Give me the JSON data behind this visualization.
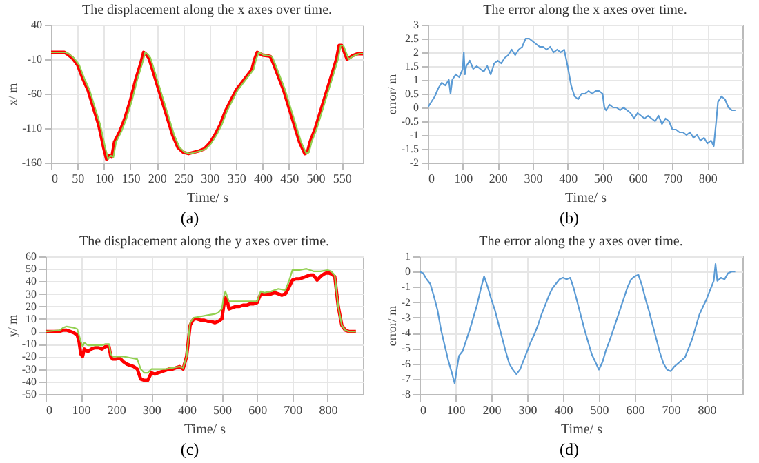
{
  "chart_data": [
    {
      "type": "line",
      "title": "The displacement along the x axes over time.",
      "xlabel": "Time/ s",
      "ylabel": "x/ m",
      "annotations": [
        "(a)"
      ],
      "xlim": [
        0,
        590
      ],
      "xticks": [
        0,
        50,
        100,
        150,
        200,
        250,
        300,
        350,
        400,
        450,
        500,
        550
      ],
      "ylim": [
        -160,
        40
      ],
      "yticks": [
        -160,
        -110,
        -60,
        -10,
        40
      ],
      "grid": true,
      "series": [
        {
          "color": "#92d050",
          "x": [
            0,
            10,
            28,
            33,
            43,
            53,
            63,
            73,
            83,
            93,
            103,
            108,
            113,
            118,
            123,
            133,
            143,
            153,
            163,
            173,
            178,
            183,
            188,
            193,
            203,
            213,
            223,
            233,
            243,
            253,
            263,
            273,
            283,
            293,
            303,
            313,
            323,
            333,
            343,
            353,
            363,
            373,
            383,
            388,
            393,
            398,
            403,
            413,
            418,
            423,
            433,
            443,
            453,
            463,
            473,
            483,
            488,
            493,
            503,
            513,
            523,
            533,
            543,
            548,
            553,
            558,
            563,
            573,
            583,
            590
          ],
          "values": [
            0,
            0,
            0,
            -2,
            -8,
            -18,
            -38,
            -55,
            -80,
            -105,
            -140,
            -155,
            -150,
            -152,
            -130,
            -115,
            -95,
            -70,
            -40,
            -15,
            0,
            -3,
            -8,
            -20,
            -45,
            -70,
            -95,
            -120,
            -138,
            -145,
            -147,
            -145,
            -143,
            -140,
            -132,
            -120,
            -105,
            -85,
            -70,
            -55,
            -45,
            -35,
            -25,
            -10,
            0,
            -2,
            -4,
            -5,
            -6,
            -15,
            -35,
            -55,
            -80,
            -105,
            -130,
            -147,
            -145,
            -130,
            -110,
            -85,
            -60,
            -35,
            -10,
            10,
            10,
            0,
            -10,
            -5,
            -2,
            -2
          ]
        },
        {
          "color": "#ff0000",
          "x": [
            0,
            10,
            25,
            30,
            40,
            50,
            60,
            70,
            80,
            90,
            100,
            105,
            110,
            115,
            120,
            130,
            140,
            150,
            160,
            170,
            175,
            180,
            185,
            190,
            200,
            210,
            220,
            230,
            240,
            250,
            260,
            270,
            280,
            290,
            300,
            310,
            320,
            330,
            340,
            350,
            360,
            370,
            380,
            385,
            390,
            395,
            400,
            410,
            415,
            420,
            430,
            440,
            450,
            460,
            470,
            480,
            485,
            490,
            500,
            510,
            520,
            530,
            540,
            545,
            550,
            555,
            560,
            570,
            580,
            590
          ],
          "values": [
            0,
            0,
            0,
            -2,
            -8,
            -18,
            -38,
            -55,
            -80,
            -105,
            -140,
            -155,
            -150,
            -152,
            -130,
            -115,
            -95,
            -70,
            -40,
            -15,
            0,
            -3,
            -8,
            -20,
            -45,
            -70,
            -95,
            -120,
            -138,
            -145,
            -147,
            -145,
            -143,
            -140,
            -132,
            -120,
            -105,
            -85,
            -70,
            -55,
            -45,
            -35,
            -25,
            -10,
            0,
            -2,
            -4,
            -5,
            -6,
            -15,
            -35,
            -55,
            -80,
            -105,
            -130,
            -147,
            -145,
            -130,
            -110,
            -85,
            -60,
            -35,
            -10,
            10,
            10,
            0,
            -10,
            -5,
            -2,
            -2
          ]
        }
      ]
    },
    {
      "type": "line",
      "title": "The error along the x axes over time.",
      "xlabel": "Time/ s",
      "ylabel": "error/ m",
      "annotations": [
        "(b)"
      ],
      "xlim": [
        0,
        900
      ],
      "xticks": [
        0,
        100,
        200,
        300,
        400,
        500,
        600,
        700,
        800
      ],
      "ylim": [
        -2,
        3
      ],
      "yticks": [
        -2,
        -1.5,
        -1,
        -0.5,
        0,
        0.5,
        1,
        1.5,
        2,
        2.5,
        3
      ],
      "grid": true,
      "series": [
        {
          "color": "#5b9bd5",
          "x": [
            0,
            10,
            20,
            30,
            40,
            50,
            60,
            65,
            70,
            80,
            90,
            100,
            103,
            106,
            110,
            120,
            130,
            140,
            150,
            160,
            170,
            180,
            190,
            200,
            210,
            220,
            230,
            240,
            250,
            260,
            270,
            280,
            290,
            300,
            310,
            320,
            330,
            340,
            350,
            360,
            370,
            380,
            390,
            400,
            410,
            420,
            430,
            440,
            450,
            460,
            470,
            480,
            490,
            500,
            505,
            510,
            520,
            530,
            540,
            550,
            560,
            570,
            580,
            590,
            600,
            610,
            620,
            630,
            640,
            650,
            660,
            670,
            680,
            690,
            700,
            710,
            720,
            730,
            740,
            750,
            760,
            770,
            780,
            790,
            800,
            810,
            818,
            825,
            830,
            840,
            850,
            860,
            870,
            880
          ],
          "values": [
            0,
            0.2,
            0.4,
            0.7,
            0.9,
            0.8,
            1.0,
            0.5,
            1.0,
            1.2,
            1.1,
            1.4,
            2.0,
            1.2,
            1.5,
            1.7,
            1.4,
            1.5,
            1.4,
            1.3,
            1.5,
            1.2,
            1.6,
            1.7,
            1.6,
            1.8,
            1.9,
            2.1,
            1.9,
            2.1,
            2.2,
            2.5,
            2.5,
            2.4,
            2.3,
            2.2,
            2.2,
            2.1,
            2.2,
            2.0,
            2.1,
            2.0,
            2.1,
            1.5,
            0.8,
            0.4,
            0.3,
            0.5,
            0.5,
            0.6,
            0.5,
            0.6,
            0.6,
            0.5,
            0.0,
            -0.1,
            0.1,
            0.0,
            0.0,
            -0.1,
            0.0,
            -0.1,
            -0.2,
            -0.4,
            -0.2,
            -0.3,
            -0.4,
            -0.3,
            -0.4,
            -0.5,
            -0.3,
            -0.6,
            -0.4,
            -0.5,
            -0.8,
            -0.8,
            -0.9,
            -0.9,
            -1.0,
            -0.9,
            -1.1,
            -1.0,
            -1.2,
            -1.1,
            -1.3,
            -1.2,
            -1.4,
            -0.5,
            0.2,
            0.4,
            0.3,
            0.0,
            -0.1,
            -0.1
          ]
        }
      ]
    },
    {
      "type": "line",
      "title": "The displacement along the y axes over time.",
      "xlabel": "Time/ s",
      "ylabel": "y/ m",
      "annotations": [
        "(c)"
      ],
      "xlim": [
        0,
        900
      ],
      "xticks": [
        0,
        100,
        200,
        300,
        400,
        500,
        600,
        700,
        800
      ],
      "ylim": [
        -50,
        60
      ],
      "yticks": [
        -50,
        -40,
        -30,
        -20,
        -10,
        0,
        10,
        20,
        30,
        40,
        50,
        60
      ],
      "grid": true,
      "series": [
        {
          "color": "#92d050",
          "x": [
            0,
            40,
            50,
            60,
            80,
            90,
            95,
            100,
            105,
            110,
            120,
            140,
            160,
            170,
            180,
            185,
            190,
            200,
            220,
            240,
            260,
            270,
            280,
            290,
            300,
            320,
            340,
            360,
            380,
            390,
            400,
            410,
            420,
            440,
            460,
            480,
            490,
            500,
            505,
            510,
            515,
            520,
            540,
            560,
            580,
            600,
            610,
            620,
            640,
            660,
            680,
            690,
            700,
            720,
            740,
            760,
            780,
            800,
            810,
            820,
            830,
            840,
            850,
            860,
            880
          ],
          "values": [
            0,
            1,
            3,
            4,
            3,
            2,
            -3,
            -8,
            -12,
            -9,
            -11,
            -11,
            -11,
            -10,
            -10,
            -18,
            -20,
            -20,
            -20,
            -21,
            -22,
            -30,
            -33,
            -33,
            -30,
            -30,
            -30,
            -29,
            -28,
            -29,
            -20,
            7,
            11,
            12,
            13,
            14,
            15,
            18,
            27,
            32,
            28,
            24,
            24,
            24,
            24,
            24,
            32,
            31,
            32,
            34,
            33,
            40,
            49,
            49,
            50,
            48,
            48,
            49,
            48,
            45,
            20,
            5,
            1,
            0,
            0
          ]
        },
        {
          "color": "#ff0000",
          "x": [
            0,
            40,
            50,
            60,
            70,
            80,
            90,
            95,
            100,
            105,
            110,
            120,
            130,
            140,
            150,
            160,
            170,
            180,
            185,
            190,
            200,
            210,
            220,
            230,
            240,
            250,
            260,
            270,
            280,
            290,
            300,
            310,
            320,
            330,
            340,
            350,
            360,
            370,
            380,
            390,
            400,
            410,
            420,
            430,
            440,
            450,
            460,
            470,
            480,
            490,
            500,
            505,
            510,
            515,
            520,
            530,
            540,
            550,
            560,
            570,
            580,
            590,
            600,
            610,
            620,
            630,
            640,
            650,
            660,
            670,
            680,
            690,
            700,
            710,
            720,
            730,
            740,
            750,
            760,
            770,
            780,
            790,
            800,
            810,
            820,
            830,
            840,
            850,
            860,
            880
          ],
          "values": [
            0,
            0,
            1,
            1,
            0,
            -1,
            -3,
            -8,
            -18,
            -20,
            -14,
            -16,
            -14,
            -13,
            -13,
            -14,
            -12,
            -12,
            -20,
            -22,
            -22,
            -21,
            -24,
            -26,
            -27,
            -28,
            -30,
            -38,
            -39,
            -39,
            -33,
            -34,
            -33,
            -32,
            -31,
            -30,
            -30,
            -29,
            -28,
            -30,
            -20,
            5,
            10,
            10,
            9,
            9,
            8,
            8,
            7,
            8,
            10,
            20,
            27,
            25,
            18,
            19,
            20,
            20,
            21,
            21,
            22,
            22,
            23,
            30,
            30,
            30,
            30,
            31,
            30,
            29,
            30,
            35,
            41,
            42,
            42,
            43,
            44,
            45,
            45,
            41,
            44,
            46,
            47,
            46,
            44,
            20,
            5,
            1,
            0,
            0
          ]
        }
      ]
    },
    {
      "type": "line",
      "title": "The error along the y axes over time.",
      "xlabel": "Time/ s",
      "ylabel": "error/ m",
      "annotations": [
        "(d)"
      ],
      "xlim": [
        0,
        900
      ],
      "xticks": [
        0,
        100,
        200,
        300,
        400,
        500,
        600,
        700,
        800
      ],
      "ylim": [
        -8,
        1
      ],
      "yticks": [
        -8,
        -7,
        -6,
        -5,
        -4,
        -3,
        -2,
        -1,
        0,
        1
      ],
      "grid": true,
      "series": [
        {
          "color": "#5b9bd5",
          "x": [
            0,
            10,
            20,
            30,
            40,
            50,
            60,
            70,
            80,
            90,
            98,
            105,
            110,
            120,
            130,
            140,
            150,
            160,
            170,
            180,
            190,
            200,
            210,
            220,
            230,
            240,
            250,
            260,
            270,
            280,
            290,
            300,
            310,
            320,
            330,
            340,
            350,
            360,
            370,
            380,
            390,
            400,
            410,
            420,
            430,
            440,
            450,
            460,
            470,
            480,
            490,
            500,
            510,
            520,
            530,
            540,
            550,
            560,
            570,
            580,
            590,
            600,
            610,
            620,
            630,
            640,
            650,
            660,
            670,
            680,
            690,
            700,
            710,
            720,
            730,
            740,
            750,
            760,
            770,
            780,
            790,
            800,
            810,
            820,
            825,
            830,
            840,
            850,
            860,
            870,
            880
          ],
          "values": [
            0,
            -0.1,
            -0.5,
            -0.8,
            -1.6,
            -2.5,
            -3.8,
            -4.8,
            -5.8,
            -6.6,
            -7.3,
            -6.2,
            -5.5,
            -5.2,
            -4.5,
            -3.8,
            -3.0,
            -2.2,
            -1.2,
            -0.3,
            -1.0,
            -1.8,
            -2.5,
            -3.4,
            -4.3,
            -5.2,
            -6.0,
            -6.4,
            -6.7,
            -6.4,
            -5.8,
            -5.2,
            -4.6,
            -4.1,
            -3.5,
            -2.8,
            -2.2,
            -1.6,
            -1.1,
            -0.8,
            -0.5,
            -0.4,
            -0.5,
            -0.4,
            -1.1,
            -2.0,
            -2.9,
            -3.8,
            -4.6,
            -5.4,
            -5.9,
            -6.4,
            -5.9,
            -5.1,
            -4.5,
            -3.8,
            -3.1,
            -2.4,
            -1.7,
            -1.0,
            -0.5,
            -0.3,
            -0.2,
            -0.9,
            -1.8,
            -2.6,
            -3.5,
            -4.4,
            -5.3,
            -6.0,
            -6.4,
            -6.5,
            -6.2,
            -6.0,
            -5.8,
            -5.6,
            -5.0,
            -4.4,
            -3.6,
            -2.8,
            -2.3,
            -1.8,
            -1.2,
            -0.6,
            0.5,
            -0.6,
            -0.4,
            -0.5,
            -0.1,
            0,
            0
          ]
        }
      ]
    }
  ]
}
